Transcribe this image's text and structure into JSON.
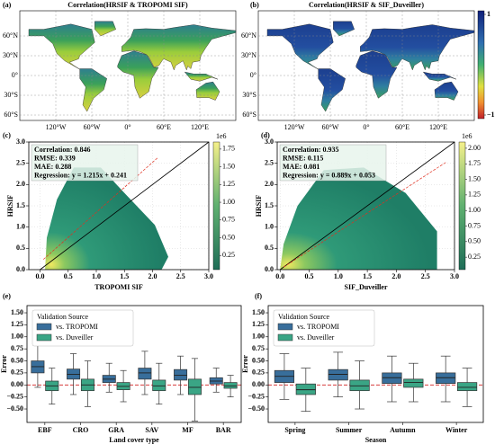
{
  "chart_data": [
    {
      "type": "map",
      "panel_label": "(a)",
      "title": "Correlation(HRSIF & TROPOMI SIF)",
      "lat_labels": [
        "60°N",
        "30°N",
        "0°",
        "30°S",
        "60°S"
      ],
      "lon_labels": [
        "120°W",
        "60°W",
        "0°",
        "60°E",
        "120°E"
      ]
    },
    {
      "type": "map",
      "panel_label": "(b)",
      "title": "Correlation(HRSIF & SIF_Duveiller)",
      "lat_labels": [
        "60°N",
        "30°N",
        "0°",
        "30°S",
        "60°S"
      ],
      "lon_labels": [
        "120°W",
        "60°W",
        "0°",
        "60°E",
        "120°E"
      ],
      "clim": [
        -1,
        1
      ],
      "cticks": [
        1,
        {
          "value": -1,
          "label": "−1"
        }
      ]
    },
    {
      "type": "hexbin",
      "panel_label": "(c)",
      "xlabel": "TROPOMI SIF",
      "ylabel": "HRSIF",
      "xlim": [
        -0.2,
        3.0
      ],
      "ylim": [
        0,
        3.0
      ],
      "xticks": [
        {
          "value": 0,
          "label": "0.0"
        },
        0.5,
        {
          "value": 1,
          "label": "1.0"
        },
        1.5,
        {
          "value": 2,
          "label": "2.0"
        },
        2.5,
        {
          "value": 3,
          "label": "3.0"
        }
      ],
      "yticks": [
        {
          "value": 0,
          "label": "0.0"
        },
        0.5,
        {
          "value": 1,
          "label": "1.0"
        },
        1.5,
        {
          "value": 2,
          "label": "2.0"
        },
        2.5,
        {
          "value": 3,
          "label": "3.0"
        }
      ],
      "grid": true,
      "annotations": [
        "Correlation: 0.846",
        "RMSE: 0.339",
        "MAE: 0.288",
        "Regression: y = 1.215x + 0.241"
      ],
      "clim": [
        0.05,
        1.85
      ],
      "cticks": [
        0.25,
        {
          "value": 0.5,
          "label": "0.50"
        },
        0.75,
        {
          "value": 1,
          "label": "1.00"
        },
        1.25,
        {
          "value": 1.5,
          "label": "1.50"
        },
        1.75
      ],
      "colorbar_offset": "1e6"
    },
    {
      "type": "hexbin",
      "panel_label": "(d)",
      "xlabel": "SIF_Duveiller",
      "ylabel": "HRSIF",
      "xlim": [
        -0.05,
        3.0
      ],
      "ylim": [
        0,
        3.0
      ],
      "xticks": [
        {
          "value": 0,
          "label": "0.0"
        },
        0.5,
        {
          "value": 1,
          "label": "1.0"
        },
        1.5,
        {
          "value": 2,
          "label": "2.0"
        },
        2.5,
        {
          "value": 3,
          "label": "3.0"
        }
      ],
      "yticks": [
        {
          "value": 0,
          "label": "0.0"
        },
        0.5,
        {
          "value": 1,
          "label": "1.0"
        },
        1.5,
        {
          "value": 2,
          "label": "2.0"
        },
        2.5,
        {
          "value": 3,
          "label": "3.0"
        }
      ],
      "grid": true,
      "annotations": [
        "Correlation: 0.935",
        "RMSE: 0.115",
        "MAE: 0.081",
        "Regression: y = 0.889x + 0.053"
      ],
      "clim": [
        0.05,
        2.1
      ],
      "cticks": [
        0.25,
        {
          "value": 0.5,
          "label": "0.50"
        },
        0.75,
        {
          "value": 1,
          "label": "1.00"
        },
        1.25,
        {
          "value": 1.5,
          "label": "1.50"
        },
        1.75,
        {
          "value": 2,
          "label": "2.00"
        }
      ],
      "colorbar_offset": "1e6"
    },
    {
      "type": "box",
      "panel_label": "(e)",
      "xlabel": "Land cover type",
      "ylabel": "Error",
      "categories": [
        "EBF",
        "CRO",
        "GRA",
        "SAV",
        "MF",
        "BAR"
      ],
      "ylim": [
        -0.78,
        1.65
      ],
      "yticks": [
        {
          "value": -0.5,
          "label": "−0.50"
        },
        {
          "value": -0.25,
          "label": "−0.25"
        },
        {
          "value": 0,
          "label": "0.00"
        },
        0.25,
        {
          "value": 0.5,
          "label": "0.50"
        },
        0.75,
        {
          "value": 1,
          "label": "1.00"
        },
        1.25,
        {
          "value": 1.5,
          "label": "1.50"
        }
      ],
      "legend_title": "Validation Source",
      "legend": "upper left",
      "series": [
        {
          "name": "vs. TROPOMI",
          "color": "#386e9b",
          "whislo": [
            -0.05,
            -0.2,
            -0.15,
            -0.2,
            -0.2,
            -0.15
          ],
          "q1": [
            0.25,
            0.12,
            0.05,
            0.12,
            0.1,
            0.02
          ],
          "med": [
            0.38,
            0.22,
            0.12,
            0.25,
            0.2,
            0.08
          ],
          "q3": [
            0.5,
            0.33,
            0.2,
            0.35,
            0.32,
            0.15
          ],
          "whishi": [
            0.85,
            0.65,
            0.45,
            0.7,
            0.6,
            0.35
          ]
        },
        {
          "name": "vs. Duveiller",
          "color": "#3aa585",
          "whislo": [
            -0.4,
            -0.45,
            -0.35,
            -0.4,
            -0.75,
            -0.25
          ],
          "q1": [
            -0.12,
            -0.12,
            -0.1,
            -0.12,
            -0.2,
            -0.07
          ],
          "med": [
            -0.02,
            0.0,
            -0.03,
            -0.02,
            -0.05,
            -0.02
          ],
          "q3": [
            0.08,
            0.12,
            0.05,
            0.1,
            0.12,
            0.05
          ],
          "whishi": [
            0.35,
            0.5,
            0.3,
            0.45,
            0.55,
            0.2
          ]
        }
      ]
    },
    {
      "type": "box",
      "panel_label": "(f)",
      "xlabel": "Season",
      "ylabel": "Error",
      "categories": [
        "Spring",
        "Summer",
        "Autumn",
        "Winter"
      ],
      "ylim": [
        -0.78,
        1.65
      ],
      "yticks": [
        {
          "value": -0.5,
          "label": "−0.50"
        },
        {
          "value": -0.25,
          "label": "−0.25"
        },
        {
          "value": 0,
          "label": "0.00"
        },
        0.25,
        {
          "value": 0.5,
          "label": "0.50"
        },
        0.75,
        {
          "value": 1,
          "label": "1.00"
        },
        1.25,
        {
          "value": 1.5,
          "label": "1.50"
        }
      ],
      "legend_title": "Validation Source",
      "legend": "upper left",
      "series": [
        {
          "name": "vs. TROPOMI",
          "color": "#386e9b",
          "whislo": [
            -0.3,
            -0.25,
            -0.35,
            -0.35
          ],
          "q1": [
            0.05,
            0.1,
            0.03,
            0.03
          ],
          "med": [
            0.18,
            0.22,
            0.15,
            0.15
          ],
          "q3": [
            0.3,
            0.32,
            0.25,
            0.25
          ],
          "whishi": [
            0.65,
            0.68,
            0.6,
            0.6
          ]
        },
        {
          "name": "vs. Duveiller",
          "color": "#3aa585",
          "whislo": [
            -0.55,
            -0.5,
            -0.35,
            -0.45
          ],
          "q1": [
            -0.2,
            -0.12,
            -0.05,
            -0.12
          ],
          "med": [
            -0.1,
            -0.02,
            0.05,
            -0.05
          ],
          "q3": [
            0.02,
            0.1,
            0.12,
            0.05
          ],
          "whishi": [
            0.35,
            0.5,
            0.45,
            0.35
          ]
        }
      ]
    }
  ]
}
